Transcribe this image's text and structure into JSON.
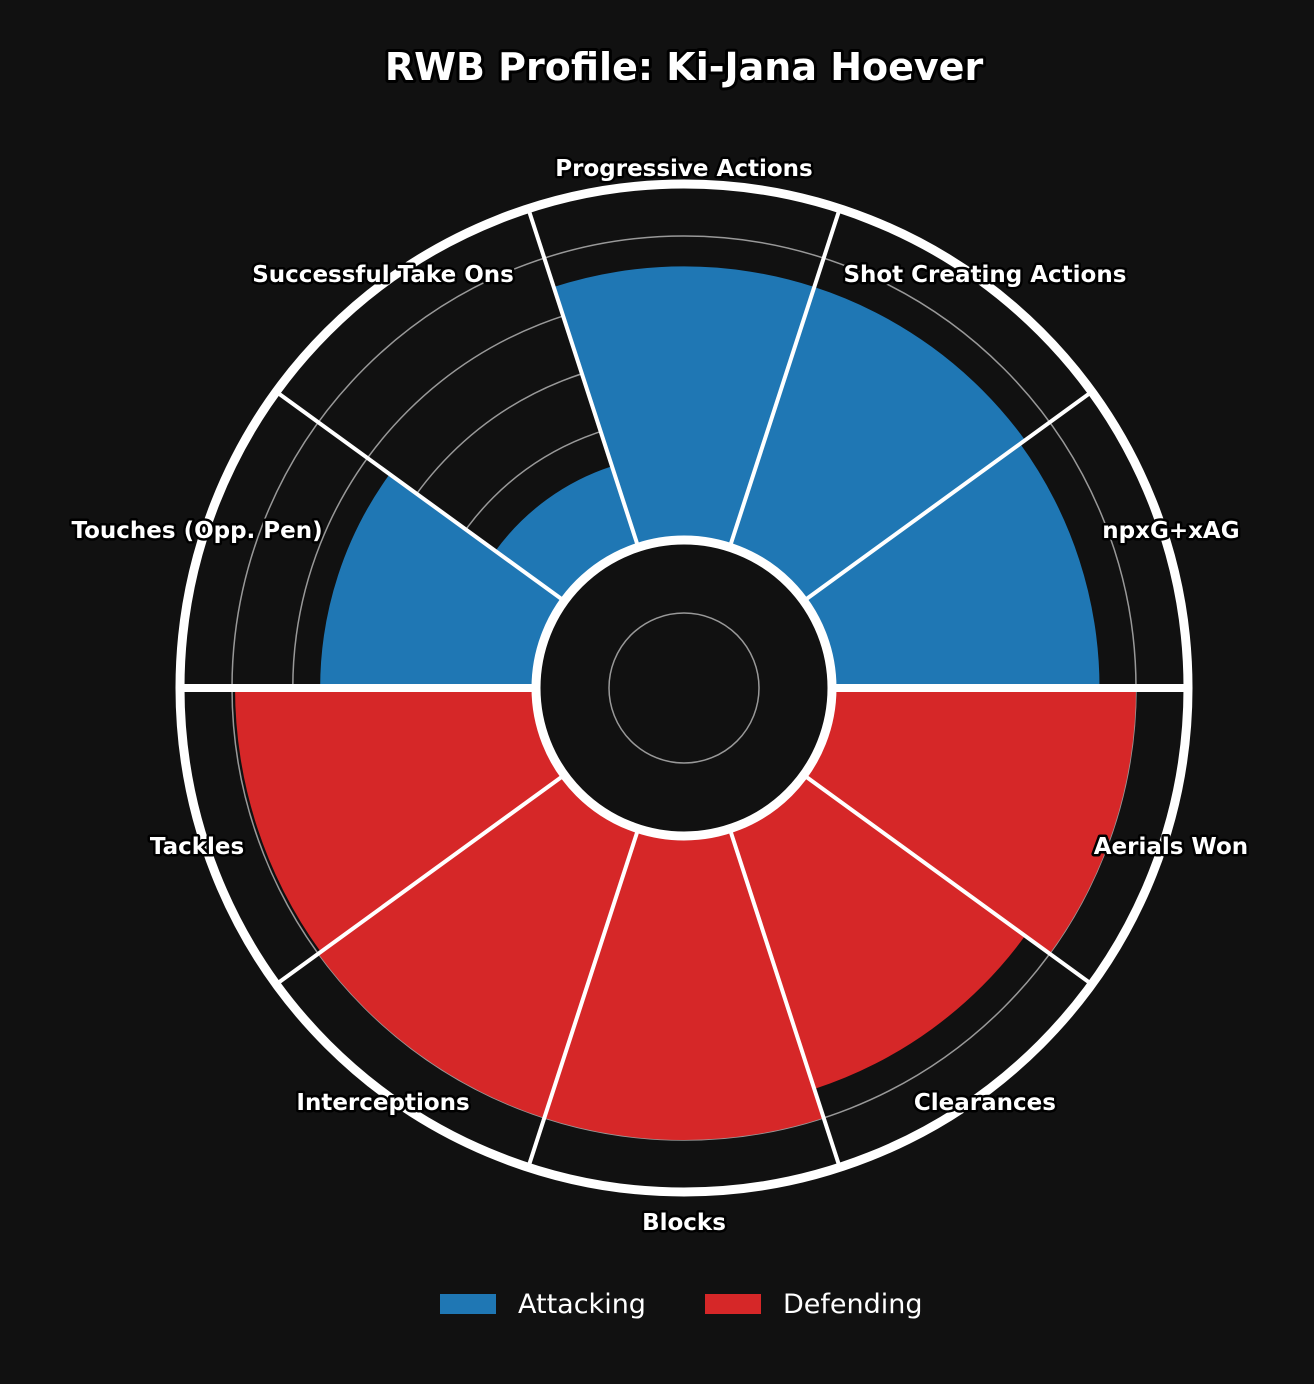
{
  "chart_data": {
    "type": "pizza",
    "title": "RWB Profile: Ki-Jana Hoever",
    "categories": [
      "npxG+xAG",
      "Shot Creating Actions",
      "Progressive Actions",
      "Successful Take Ons",
      "Touches (Opp. Pen)",
      "Tackles",
      "Interceptions",
      "Blocks",
      "Clearances",
      "Aerials Won"
    ],
    "groups": [
      "Attacking",
      "Attacking",
      "Attacking",
      "Attacking",
      "Attacking",
      "Defending",
      "Defending",
      "Defending",
      "Defending",
      "Defending"
    ],
    "values": [
      88,
      90,
      90,
      28,
      71,
      99,
      100,
      100,
      90,
      100
    ],
    "ylim": [
      0,
      100
    ],
    "grid_values": [
      20,
      40,
      60,
      80,
      100
    ],
    "series": [
      {
        "name": "Attacking",
        "color": "#1f77b4"
      },
      {
        "name": "Defending",
        "color": "#d62728"
      }
    ],
    "legend_position": "bottom-center",
    "grid": true
  },
  "colors": {
    "background": "#111111",
    "edge": "#ffffff",
    "grid": "#999999",
    "attacking": "#1f77b4",
    "defending": "#d62728"
  }
}
